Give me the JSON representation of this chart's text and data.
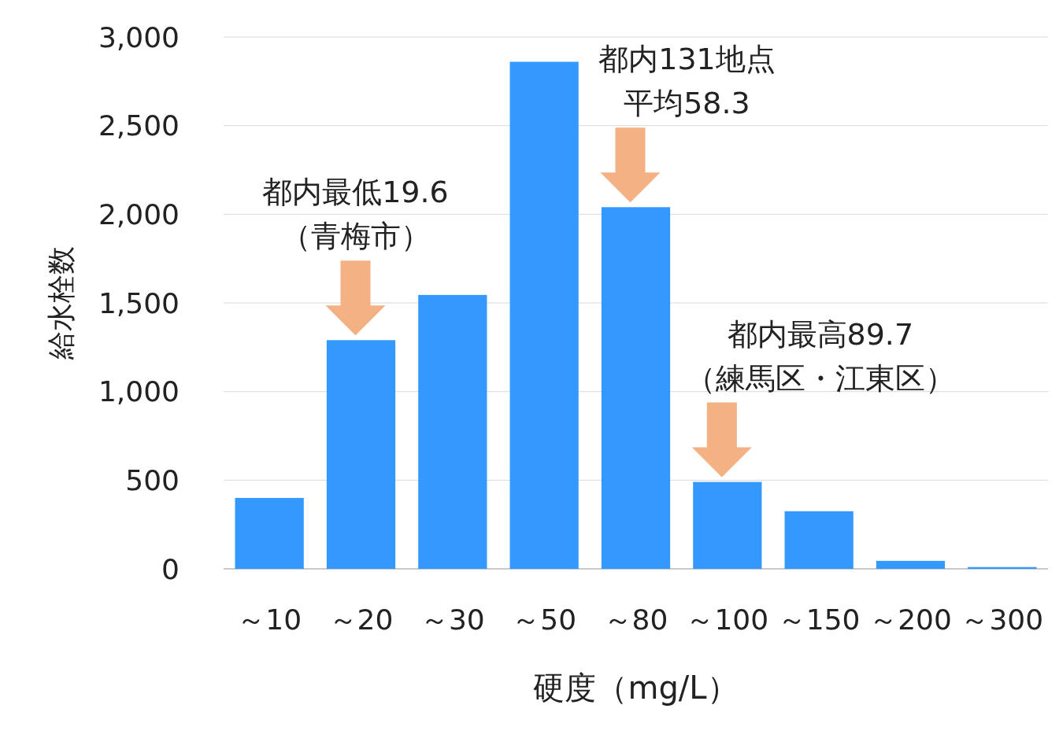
{
  "chart_data": {
    "type": "bar",
    "xlabel": "硬度（mg/L）",
    "ylabel": "給水栓数",
    "categories": [
      "～10",
      "～20",
      "～30",
      "～50",
      "～80",
      "～100",
      "～150",
      "～200",
      "～300"
    ],
    "values": [
      400,
      1290,
      1545,
      2860,
      2040,
      490,
      325,
      45,
      10
    ],
    "color": "#3399ff",
    "ylim": [
      0,
      3000
    ],
    "yticks": [
      {
        "value": 0,
        "label": "0"
      },
      {
        "value": 500,
        "label": "500"
      },
      {
        "value": 1000,
        "label": "1,000"
      },
      {
        "value": 1500,
        "label": "1,500"
      },
      {
        "value": 2000,
        "label": "2,000"
      },
      {
        "value": 2500,
        "label": "2,500"
      },
      {
        "value": 3000,
        "label": "3,000"
      }
    ],
    "grid": "y",
    "annotations": [
      "都内最低19.6",
      {
        "text": "（青梅市）",
        "x": "～20",
        "y": 1290
      },
      "都内131地点",
      {
        "text": "平均58.3",
        "x": "～80",
        "y": 2040
      },
      "都内最高89.7",
      {
        "text": "（練馬区・江東区）",
        "x": "～100",
        "y": 490
      }
    ]
  }
}
